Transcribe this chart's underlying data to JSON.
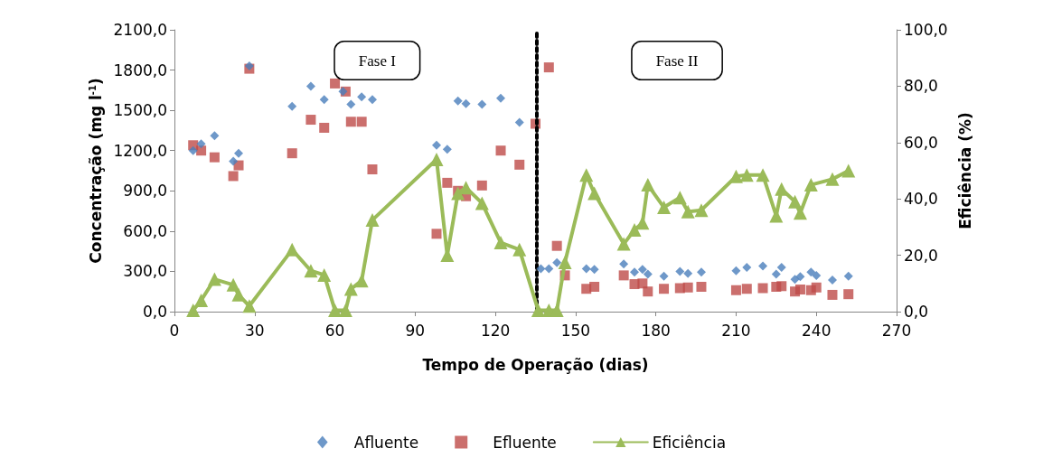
{
  "chart_data": {
    "type": "scatter",
    "xlabel": "Tempo de Operação (dias)",
    "ylabel": "Concentração (mg l$^{-1}$)",
    "y2label": "Eficiência (%)",
    "xlim": [
      0,
      270
    ],
    "xticks": [
      0,
      30,
      60,
      90,
      120,
      150,
      180,
      210,
      240,
      270
    ],
    "ylim": [
      0,
      2100
    ],
    "yticks": [
      {
        "value": 0,
        "label": "0,0"
      },
      {
        "value": 300,
        "label": "300,0"
      },
      {
        "value": 600,
        "label": "600,0"
      },
      {
        "value": 900,
        "label": "900,0"
      },
      {
        "value": 1200,
        "label": "1200,0"
      },
      {
        "value": 1500,
        "label": "1500,0"
      },
      {
        "value": 1800,
        "label": "1800,0"
      },
      {
        "value": 2100,
        "label": "2100,0"
      }
    ],
    "y2lim": [
      0,
      100
    ],
    "y2ticks": [
      {
        "value": 0,
        "label": "0,0"
      },
      {
        "value": 20,
        "label": "20,0"
      },
      {
        "value": 40,
        "label": "40,0"
      },
      {
        "value": 60,
        "label": "60,0"
      },
      {
        "value": 80,
        "label": "80,0"
      },
      {
        "value": 100,
        "label": "100,0"
      }
    ],
    "grid": false,
    "legend": "bottom",
    "annotations": [
      "Fase I",
      "Fase II"
    ],
    "ref_lines": [
      {
        "axis": "x",
        "value": 135.5,
        "color": "#000000",
        "line_style": "dotted"
      }
    ],
    "series": [
      {
        "name": "Afluente",
        "type": "scatter",
        "marker": "diamond",
        "color": "#4a7ebb",
        "x": [
          7,
          10,
          15,
          22,
          24,
          28,
          44,
          51,
          56,
          63,
          66,
          70,
          74,
          98,
          102,
          106,
          109,
          115,
          122,
          129,
          137,
          140,
          143,
          154,
          157,
          168,
          172,
          175,
          177,
          183,
          189,
          192,
          197,
          210,
          214,
          220,
          225,
          227,
          232,
          234,
          238,
          240,
          246,
          252
        ],
        "values": [
          1200,
          1250,
          1310,
          1120,
          1180,
          1830,
          1530,
          1680,
          1580,
          1640,
          1545,
          1600,
          1580,
          1240,
          1210,
          1570,
          1550,
          1545,
          1590,
          1410,
          320,
          320,
          365,
          320,
          315,
          355,
          295,
          315,
          280,
          265,
          300,
          285,
          295,
          305,
          330,
          340,
          280,
          330,
          240,
          260,
          295,
          270,
          235,
          265
        ]
      },
      {
        "name": "Efluente",
        "type": "scatter",
        "marker": "square",
        "color": "#be4b48",
        "x": [
          7,
          10,
          15,
          22,
          24,
          28,
          44,
          51,
          56,
          60,
          64,
          66,
          70,
          74,
          98,
          102,
          106,
          109,
          115,
          122,
          129,
          135,
          140,
          143,
          146,
          154,
          157,
          168,
          172,
          175,
          177,
          183,
          189,
          192,
          197,
          210,
          214,
          220,
          225,
          227,
          232,
          234,
          238,
          240,
          246,
          252
        ],
        "values": [
          1240,
          1200,
          1150,
          1010,
          1090,
          1810,
          1180,
          1430,
          1370,
          1700,
          1640,
          1415,
          1415,
          1060,
          580,
          960,
          900,
          860,
          940,
          1200,
          1095,
          1400,
          1820,
          490,
          270,
          170,
          185,
          270,
          205,
          210,
          150,
          170,
          175,
          180,
          185,
          160,
          170,
          175,
          185,
          190,
          150,
          165,
          160,
          180,
          125,
          130
        ]
      },
      {
        "name": "Eficiência",
        "type": "line",
        "axis": "y2",
        "marker": "triangle",
        "line_style": "solid",
        "color": "#9bbb59",
        "x": [
          7,
          10,
          15,
          22,
          24,
          28,
          44,
          51,
          56,
          60,
          64,
          66,
          70,
          74,
          98,
          102,
          106,
          109,
          115,
          122,
          129,
          136,
          140,
          143,
          146,
          154,
          157,
          168,
          172,
          175,
          177,
          183,
          189,
          192,
          197,
          210,
          214,
          220,
          225,
          227,
          232,
          234,
          238,
          246,
          252
        ],
        "values": [
          0.5,
          4,
          11.5,
          9.5,
          6,
          2,
          22,
          14.5,
          13,
          0.5,
          0.5,
          8,
          11,
          32.5,
          54,
          20,
          42,
          44,
          38.5,
          24.5,
          22,
          0.5,
          0.5,
          0.5,
          17.5,
          48.5,
          42,
          24,
          29,
          31.5,
          45,
          37,
          40.5,
          35.5,
          36,
          48,
          48.5,
          48.5,
          34,
          43.5,
          39,
          35,
          45,
          47,
          50
        ]
      }
    ]
  }
}
